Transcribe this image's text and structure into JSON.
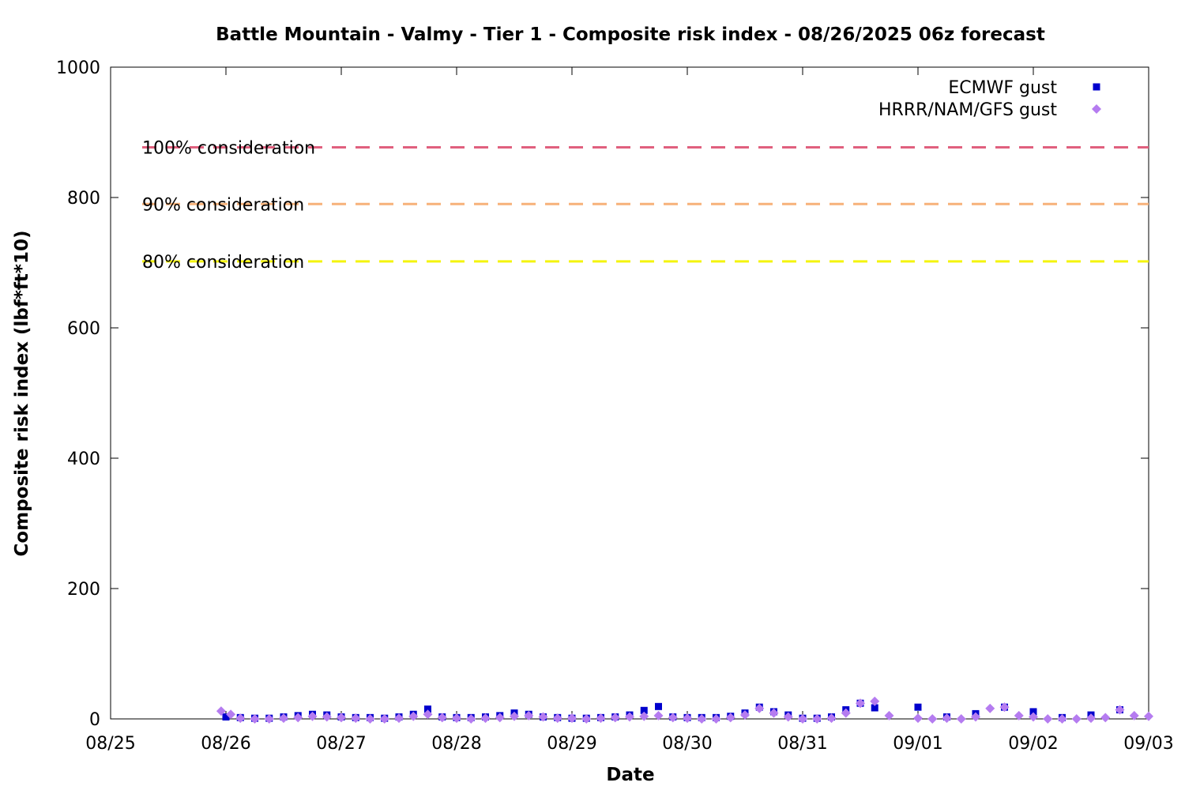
{
  "chart_data": {
    "type": "scatter",
    "title": "Battle Mountain - Valmy - Tier 1 - Composite risk index - 08/26/2025 06z forecast",
    "xlabel": "Date",
    "ylabel": "Composite risk index (lbf*ft*10)",
    "xlim": [
      "08/25 00z",
      "09/03 00z"
    ],
    "ylim": [
      0,
      1000
    ],
    "x_ticks": [
      "08/25",
      "08/26",
      "08/27",
      "08/28",
      "08/29",
      "08/30",
      "08/31",
      "09/01",
      "09/02",
      "09/03"
    ],
    "y_ticks": [
      0,
      200,
      400,
      600,
      800,
      1000
    ],
    "grid": false,
    "legend_position": "top-right",
    "thresholds": [
      {
        "label": "100% consideration",
        "value": 877,
        "color": "#e0607e"
      },
      {
        "label": "90% consideration",
        "value": 790,
        "color": "#f7b27a"
      },
      {
        "label": "80% consideration",
        "value": 702,
        "color": "#f4f40e"
      }
    ],
    "series": [
      {
        "name": "ECMWF gust",
        "marker": "square",
        "color": "#0000cd",
        "points": [
          [
            "08/26 00z",
            3
          ],
          [
            "08/26 03z",
            2
          ],
          [
            "08/26 06z",
            1
          ],
          [
            "08/26 09z",
            1
          ],
          [
            "08/26 12z",
            3
          ],
          [
            "08/26 15z",
            5
          ],
          [
            "08/26 18z",
            7
          ],
          [
            "08/26 21z",
            6
          ],
          [
            "08/27 00z",
            3
          ],
          [
            "08/27 03z",
            2
          ],
          [
            "08/27 06z",
            2
          ],
          [
            "08/27 09z",
            1
          ],
          [
            "08/27 12z",
            3
          ],
          [
            "08/27 15z",
            7
          ],
          [
            "08/27 18z",
            15
          ],
          [
            "08/27 21z",
            3
          ],
          [
            "08/28 00z",
            2
          ],
          [
            "08/28 03z",
            2
          ],
          [
            "08/28 06z",
            3
          ],
          [
            "08/28 09z",
            5
          ],
          [
            "08/28 12z",
            9
          ],
          [
            "08/28 15z",
            7
          ],
          [
            "08/28 18z",
            3
          ],
          [
            "08/28 21z",
            2
          ],
          [
            "08/29 00z",
            1
          ],
          [
            "08/29 03z",
            1
          ],
          [
            "08/29 06z",
            2
          ],
          [
            "08/29 09z",
            3
          ],
          [
            "08/29 12z",
            6
          ],
          [
            "08/29 15z",
            13
          ],
          [
            "08/29 18z",
            19
          ],
          [
            "08/29 21z",
            3
          ],
          [
            "08/30 00z",
            2
          ],
          [
            "08/30 03z",
            2
          ],
          [
            "08/30 06z",
            2
          ],
          [
            "08/30 09z",
            4
          ],
          [
            "08/30 12z",
            9
          ],
          [
            "08/30 15z",
            18
          ],
          [
            "08/30 18z",
            11
          ],
          [
            "08/30 21z",
            6
          ],
          [
            "08/31 00z",
            1
          ],
          [
            "08/31 03z",
            1
          ],
          [
            "08/31 06z",
            3
          ],
          [
            "08/31 09z",
            14
          ],
          [
            "08/31 12z",
            24
          ],
          [
            "08/31 15z",
            17
          ],
          [
            "09/01 00z",
            18
          ],
          [
            "09/01 06z",
            3
          ],
          [
            "09/01 12z",
            8
          ],
          [
            "09/01 18z",
            18
          ],
          [
            "09/02 00z",
            11
          ],
          [
            "09/02 06z",
            2
          ],
          [
            "09/02 12z",
            6
          ],
          [
            "09/02 18z",
            14
          ]
        ]
      },
      {
        "name": "HRRR/NAM/GFS gust",
        "marker": "diamond",
        "color": "#b57cf0",
        "points": [
          [
            "08/25 23z",
            12
          ],
          [
            "08/26 01z",
            7
          ],
          [
            "08/26 03z",
            1
          ],
          [
            "08/26 06z",
            0
          ],
          [
            "08/26 09z",
            0
          ],
          [
            "08/26 12z",
            1
          ],
          [
            "08/26 15z",
            2
          ],
          [
            "08/26 18z",
            4
          ],
          [
            "08/26 21z",
            3
          ],
          [
            "08/27 00z",
            2
          ],
          [
            "08/27 03z",
            1
          ],
          [
            "08/27 06z",
            0
          ],
          [
            "08/27 09z",
            0
          ],
          [
            "08/27 12z",
            1
          ],
          [
            "08/27 15z",
            4
          ],
          [
            "08/27 18z",
            7
          ],
          [
            "08/27 21z",
            2
          ],
          [
            "08/28 00z",
            1
          ],
          [
            "08/28 03z",
            0
          ],
          [
            "08/28 06z",
            1
          ],
          [
            "08/28 09z",
            2
          ],
          [
            "08/28 12z",
            4
          ],
          [
            "08/28 15z",
            5
          ],
          [
            "08/28 18z",
            3
          ],
          [
            "08/28 21z",
            1
          ],
          [
            "08/29 00z",
            1
          ],
          [
            "08/29 03z",
            0
          ],
          [
            "08/29 06z",
            1
          ],
          [
            "08/29 09z",
            2
          ],
          [
            "08/29 12z",
            3
          ],
          [
            "08/29 15z",
            4
          ],
          [
            "08/29 18z",
            5
          ],
          [
            "08/29 21z",
            2
          ],
          [
            "08/30 00z",
            1
          ],
          [
            "08/30 03z",
            0
          ],
          [
            "08/30 06z",
            0
          ],
          [
            "08/30 09z",
            2
          ],
          [
            "08/30 12z",
            6
          ],
          [
            "08/30 15z",
            16
          ],
          [
            "08/30 18z",
            9
          ],
          [
            "08/30 21z",
            3
          ],
          [
            "08/31 00z",
            0
          ],
          [
            "08/31 03z",
            0
          ],
          [
            "08/31 06z",
            1
          ],
          [
            "08/31 09z",
            9
          ],
          [
            "08/31 12z",
            24
          ],
          [
            "08/31 15z",
            27
          ],
          [
            "08/31 18z",
            5
          ],
          [
            "09/01 00z",
            1
          ],
          [
            "09/01 03z",
            0
          ],
          [
            "09/01 06z",
            1
          ],
          [
            "09/01 09z",
            0
          ],
          [
            "09/01 12z",
            3
          ],
          [
            "09/01 15z",
            16
          ],
          [
            "09/01 18z",
            18
          ],
          [
            "09/01 21z",
            5
          ],
          [
            "09/02 00z",
            3
          ],
          [
            "09/02 03z",
            0
          ],
          [
            "09/02 06z",
            0
          ],
          [
            "09/02 09z",
            0
          ],
          [
            "09/02 12z",
            1
          ],
          [
            "09/02 15z",
            2
          ],
          [
            "09/02 18z",
            14
          ],
          [
            "09/02 21z",
            5
          ],
          [
            "09/03 00z",
            4
          ]
        ]
      }
    ]
  }
}
